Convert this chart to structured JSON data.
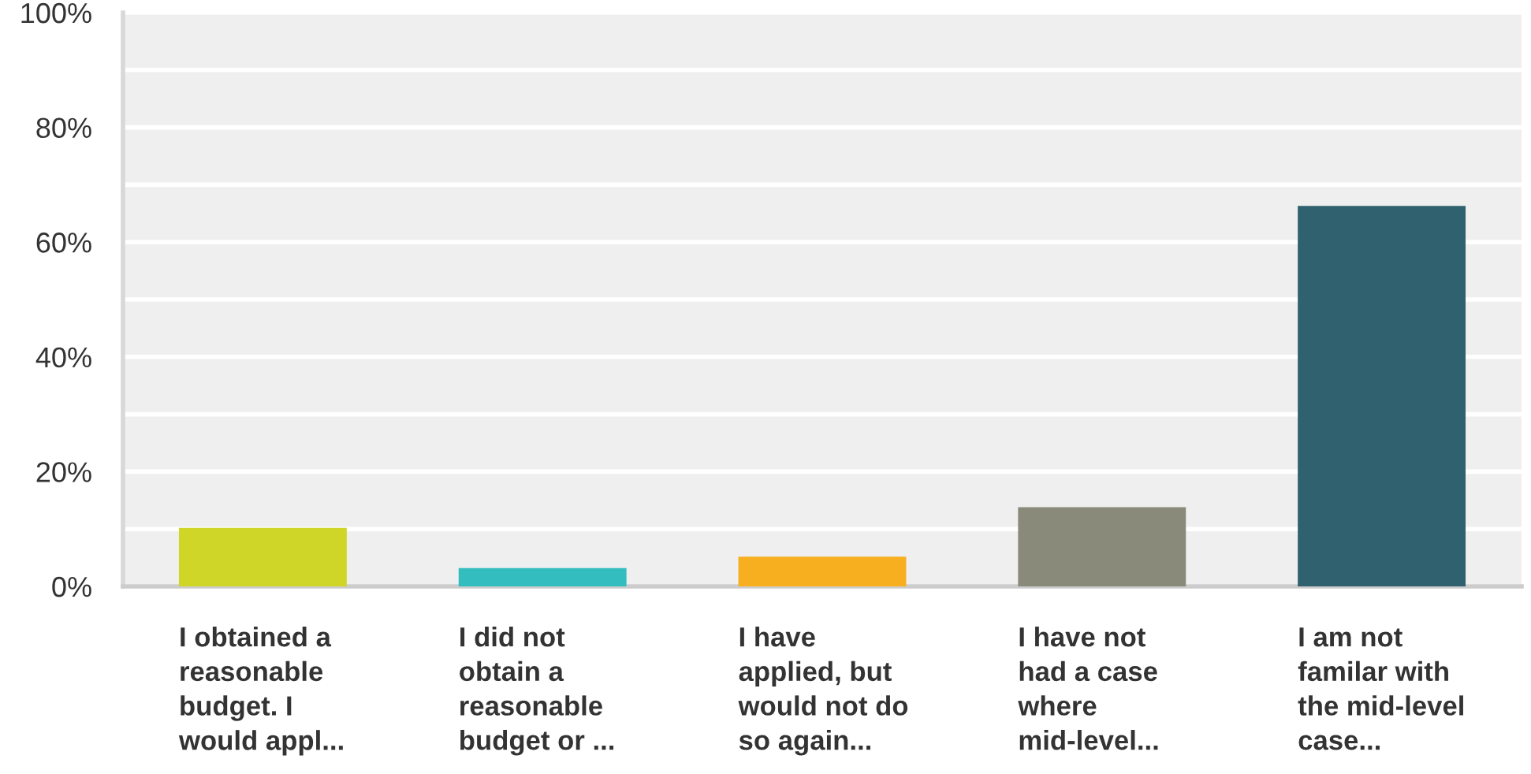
{
  "chart_data": {
    "type": "bar",
    "categories": [
      "I obtained a\nreasonable\nbudget. I\nwould appl...",
      "I did not\nobtain a\nreasonable\nbudget or ...",
      "I have\napplied, but\nwould not do\nso again...",
      "I have not\nhad a case\nwhere\nmid-level...",
      "I am not\nfamilar with\nthe mid-level\ncase..."
    ],
    "values": [
      10.2,
      3.2,
      5.2,
      13.8,
      66.3
    ],
    "colors": [
      "#cfd628",
      "#33bdbe",
      "#f7af1f",
      "#898a79",
      "#2f616f"
    ],
    "ylim": [
      0,
      100
    ],
    "yticks": [
      {
        "value": 0,
        "label": "0%"
      },
      {
        "value": 10,
        "label": null
      },
      {
        "value": 20,
        "label": "20%"
      },
      {
        "value": 30,
        "label": null
      },
      {
        "value": 40,
        "label": "40%"
      },
      {
        "value": 50,
        "label": null
      },
      {
        "value": 60,
        "label": "60%"
      },
      {
        "value": 70,
        "label": null
      },
      {
        "value": 80,
        "label": "80%"
      },
      {
        "value": 90,
        "label": null
      },
      {
        "value": 100,
        "label": "100%"
      }
    ],
    "grid": "y"
  }
}
